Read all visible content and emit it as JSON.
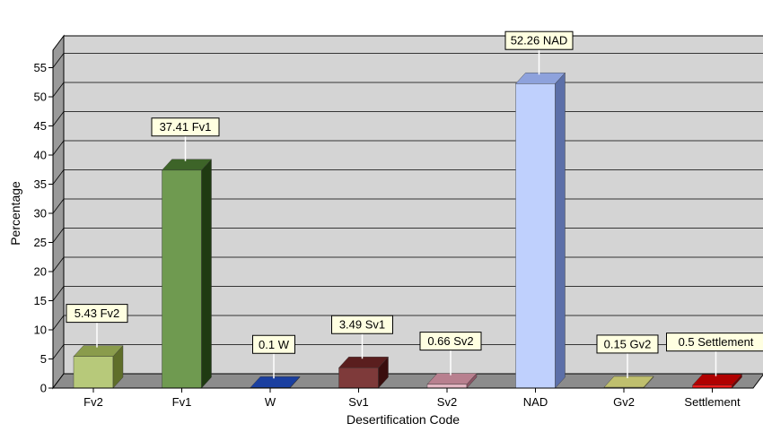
{
  "chart_data": {
    "type": "bar",
    "title": "",
    "xlabel": "Desertification Code",
    "ylabel": "Percentage",
    "ylim": [
      0,
      58
    ],
    "yticks": [
      0,
      5,
      10,
      15,
      20,
      25,
      30,
      35,
      40,
      45,
      50,
      55
    ],
    "grid": true,
    "categories": [
      "Fv2",
      "Fv1",
      "W",
      "Sv1",
      "Sv2",
      "NAD",
      "Gv2",
      "Settlement"
    ],
    "values": [
      5.43,
      37.41,
      0.1,
      3.49,
      0.66,
      52.26,
      0.15,
      0.5
    ],
    "data_labels": [
      "5.43 Fv2",
      "37.41 Fv1",
      "0.1 W",
      "3.49 Sv1",
      "0.66 Sv2",
      "52.26 NAD",
      "0.15 Gv2",
      "0.5 Settlement"
    ],
    "colors": [
      {
        "front": "#b7c97a",
        "top": "#8a9c4c",
        "side": "#5f6e2a"
      },
      {
        "front": "#6f9a50",
        "top": "#3d6428",
        "side": "#1f3a12"
      },
      {
        "front": "#1f5fd6",
        "top": "#1a3fa0",
        "side": "#0e2468"
      },
      {
        "front": "#7e3a3a",
        "top": "#5a1e1e",
        "side": "#3a0e0e"
      },
      {
        "front": "#e3b7c3",
        "top": "#b8808f",
        "side": "#8a5464"
      },
      {
        "front": "#bfd0fd",
        "top": "#8ea2dc",
        "side": "#5c6fa8"
      },
      {
        "front": "#ecec9e",
        "top": "#bfbf6e",
        "side": "#8e8e40"
      },
      {
        "front": "#ee1a1a",
        "top": "#b00000",
        "side": "#700000"
      }
    ],
    "wall_color": "#d4d4d4",
    "floor_color": "#8c8c8c"
  }
}
